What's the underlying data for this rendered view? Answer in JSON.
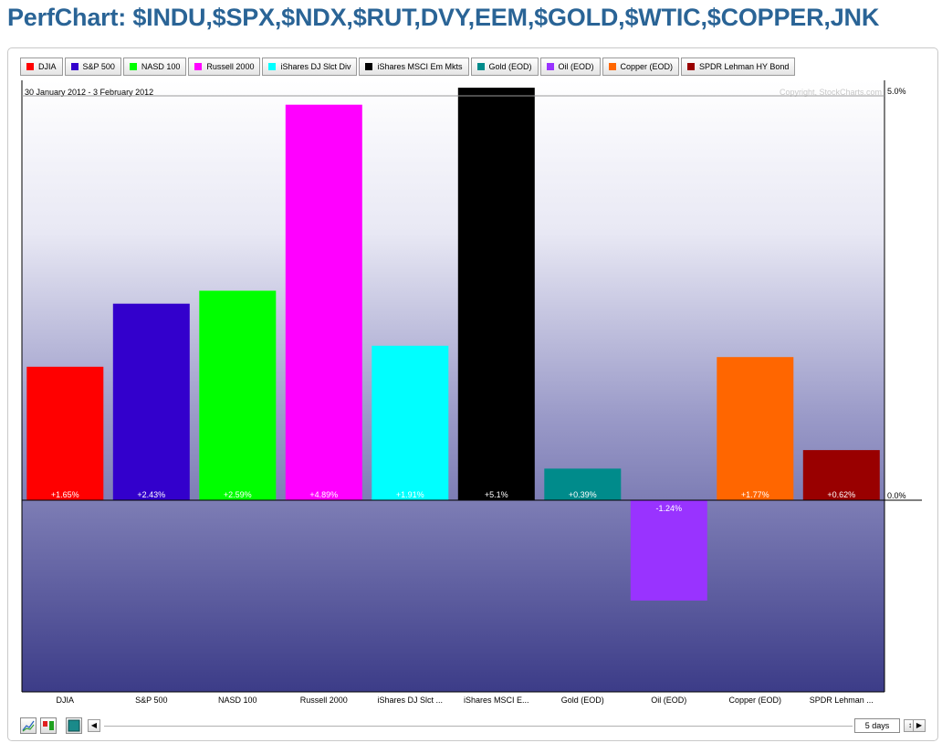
{
  "header": {
    "title": "PerfChart: $INDU,$SPX,$NDX,$RUT,DVY,EEM,$GOLD,$WTIC,$COPPER,JNK"
  },
  "chart": {
    "date_range": "30 January 2012 - 3 February 2012",
    "copyright": "Copyright, StockCharts.com",
    "period": "5 days"
  },
  "legend": [
    {
      "label": "DJIA",
      "color": "#ff0000"
    },
    {
      "label": "S&P 500",
      "color": "#3300cc"
    },
    {
      "label": "NASD 100",
      "color": "#00ff00"
    },
    {
      "label": "Russell 2000",
      "color": "#ff00ff"
    },
    {
      "label": "iShares DJ Slct Div",
      "color": "#00ffff"
    },
    {
      "label": "iShares MSCI Em Mkts",
      "color": "#000000"
    },
    {
      "label": "Gold (EOD)",
      "color": "#008b8b"
    },
    {
      "label": "Oil (EOD)",
      "color": "#9933ff"
    },
    {
      "label": "Copper (EOD)",
      "color": "#ff6600"
    },
    {
      "label": "SPDR Lehman HY Bond",
      "color": "#990000"
    }
  ],
  "chart_data": {
    "type": "bar",
    "categories": [
      "DJIA",
      "S&P 500",
      "NASD 100",
      "Russell 2000",
      "iShares DJ Slct ...",
      "iShares MSCI E...",
      "Gold (EOD)",
      "Oil (EOD)",
      "Copper (EOD)",
      "SPDR Lehman ..."
    ],
    "values": [
      1.65,
      2.43,
      2.59,
      4.89,
      1.91,
      5.1,
      0.39,
      -1.24,
      1.77,
      0.62
    ],
    "value_labels": [
      "+1.65%",
      "+2.43%",
      "+2.59%",
      "+4.89%",
      "+1.91%",
      "+5.1%",
      "+0.39%",
      "-1.24%",
      "+1.77%",
      "+0.62%"
    ],
    "colors": [
      "#ff0000",
      "#3300cc",
      "#00ff00",
      "#ff00ff",
      "#00ffff",
      "#000000",
      "#008b8b",
      "#9933ff",
      "#ff6600",
      "#990000"
    ],
    "y_ticks": [
      0,
      5
    ],
    "y_tick_labels": [
      "0.0%",
      "5.0%"
    ],
    "ylim": [
      -2.45,
      5.1
    ],
    "grid": false,
    "legend_position": "top"
  }
}
